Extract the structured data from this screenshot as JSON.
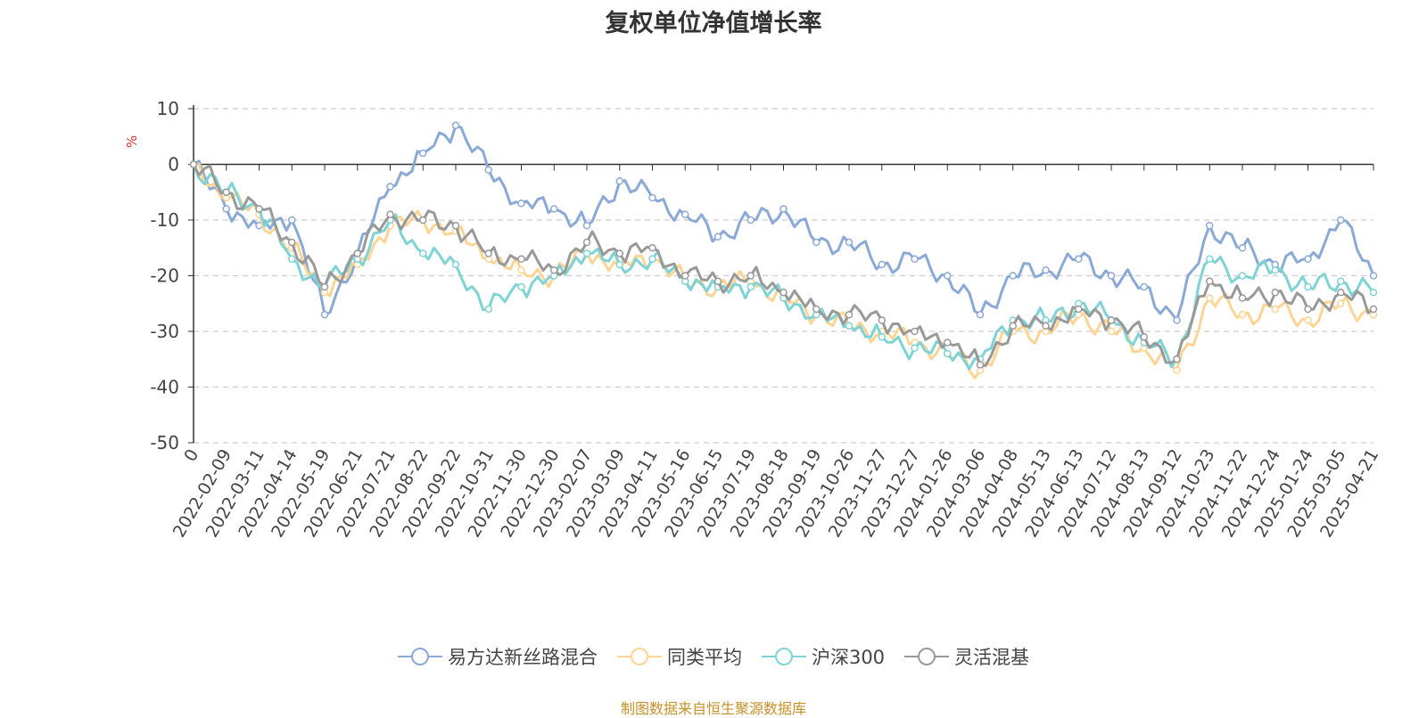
{
  "chart_data": {
    "type": "line",
    "title": "复权单位净值增长率",
    "y_unit": "%",
    "ylim": [
      -50,
      10
    ],
    "y_ticks": [
      10,
      0,
      -10,
      -20,
      -30,
      -40,
      -50
    ],
    "x_tick_labels": [
      "0",
      "2022-02-09",
      "2022-03-11",
      "2022-04-14",
      "2022-05-19",
      "2022-06-21",
      "2022-07-21",
      "2022-08-22",
      "2022-09-22",
      "2022-10-31",
      "2022-11-30",
      "2022-12-30",
      "2023-02-07",
      "2023-03-09",
      "2023-04-11",
      "2023-05-16",
      "2023-06-15",
      "2023-07-19",
      "2023-08-18",
      "2023-09-19",
      "2023-10-26",
      "2023-11-27",
      "2023-12-27",
      "2024-01-26",
      "2024-03-06",
      "2024-04-08",
      "2024-05-13",
      "2024-06-13",
      "2024-07-12",
      "2024-08-13",
      "2024-09-12",
      "2024-10-23",
      "2024-11-22",
      "2024-12-24",
      "2025-01-24",
      "2025-03-05",
      "2025-04-21"
    ],
    "grid": "dashed horizontal",
    "legend_position": "bottom",
    "series": [
      {
        "name": "易方达新丝路混合",
        "color": "#8aa9d6",
        "values": [
          0,
          -8,
          -11,
          -10,
          -27,
          -16,
          -4,
          2,
          7,
          -1,
          -7,
          -8,
          -11,
          -3,
          -6,
          -9,
          -13,
          -10,
          -8,
          -14,
          -14,
          -18,
          -17,
          -20,
          -27,
          -20,
          -19,
          -17,
          -20,
          -22,
          -28,
          -11,
          -15,
          -18,
          -17,
          -10,
          -20
        ]
      },
      {
        "name": "同类平均",
        "color": "#fdd493",
        "values": [
          0,
          -6,
          -9,
          -15,
          -23,
          -18,
          -11,
          -10,
          -12,
          -17,
          -19,
          -20,
          -16,
          -18,
          -17,
          -21,
          -22,
          -21,
          -24,
          -27,
          -29,
          -30,
          -32,
          -34,
          -37,
          -30,
          -30,
          -27,
          -30,
          -33,
          -37,
          -24,
          -27,
          -26,
          -28,
          -25,
          -27
        ]
      },
      {
        "name": "沪深300",
        "color": "#7ed3d4",
        "values": [
          0,
          -5,
          -8,
          -17,
          -22,
          -17,
          -10,
          -16,
          -18,
          -26,
          -22,
          -20,
          -16,
          -18,
          -17,
          -21,
          -22,
          -22,
          -24,
          -27,
          -29,
          -31,
          -33,
          -34,
          -35,
          -28,
          -28,
          -25,
          -28,
          -32,
          -35,
          -17,
          -20,
          -19,
          -22,
          -21,
          -23
        ]
      },
      {
        "name": "灵活混基",
        "color": "#999999",
        "values": [
          0,
          -5,
          -8,
          -14,
          -22,
          -16,
          -9,
          -10,
          -11,
          -16,
          -17,
          -19,
          -14,
          -16,
          -15,
          -20,
          -21,
          -20,
          -23,
          -26,
          -27,
          -28,
          -30,
          -32,
          -36,
          -29,
          -29,
          -26,
          -28,
          -31,
          -35,
          -21,
          -24,
          -23,
          -26,
          -23,
          -26
        ]
      }
    ]
  },
  "source_note": "制图数据来自恒生聚源数据库"
}
